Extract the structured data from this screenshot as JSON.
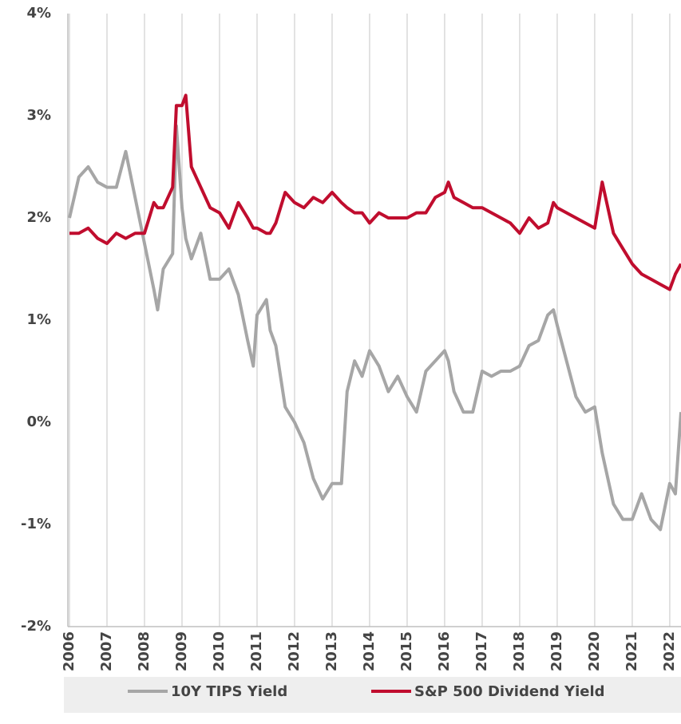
{
  "chart_data": {
    "type": "line",
    "x": [
      2006,
      2006.25,
      2006.5,
      2006.75,
      2007,
      2007.25,
      2007.5,
      2007.75,
      2008,
      2008.25,
      2008.35,
      2008.5,
      2008.75,
      2008.85,
      2009,
      2009.1,
      2009.25,
      2009.5,
      2009.75,
      2010,
      2010.25,
      2010.5,
      2010.75,
      2010.9,
      2011,
      2011.25,
      2011.35,
      2011.5,
      2011.75,
      2012,
      2012.25,
      2012.5,
      2012.75,
      2013,
      2013.25,
      2013.4,
      2013.6,
      2013.8,
      2014,
      2014.25,
      2014.5,
      2014.75,
      2015,
      2015.25,
      2015.5,
      2015.75,
      2016,
      2016.1,
      2016.25,
      2016.5,
      2016.75,
      2017,
      2017.25,
      2017.5,
      2017.75,
      2018,
      2018.25,
      2018.5,
      2018.75,
      2018.9,
      2019,
      2019.25,
      2019.5,
      2019.75,
      2020,
      2020.2,
      2020.5,
      2020.75,
      2021,
      2021.25,
      2021.5,
      2021.75,
      2022,
      2022.15,
      2022.3
    ],
    "series": [
      {
        "name": "10Y TIPS Yield",
        "color": "#a6a6a6",
        "values": [
          2.0,
          2.4,
          2.5,
          2.35,
          2.3,
          2.3,
          2.65,
          2.2,
          1.75,
          1.3,
          1.1,
          1.5,
          1.65,
          2.9,
          2.1,
          1.8,
          1.6,
          1.85,
          1.4,
          1.4,
          1.5,
          1.25,
          0.8,
          0.55,
          1.05,
          1.2,
          0.9,
          0.75,
          0.15,
          0.0,
          -0.2,
          -0.55,
          -0.75,
          -0.6,
          -0.6,
          0.3,
          0.6,
          0.45,
          0.7,
          0.55,
          0.3,
          0.45,
          0.25,
          0.1,
          0.5,
          0.6,
          0.7,
          0.6,
          0.3,
          0.1,
          0.1,
          0.5,
          0.45,
          0.5,
          0.5,
          0.55,
          0.75,
          0.8,
          1.05,
          1.1,
          0.95,
          0.6,
          0.25,
          0.1,
          0.15,
          -0.3,
          -0.8,
          -0.95,
          -0.95,
          -0.7,
          -0.95,
          -1.05,
          -0.6,
          -0.7,
          0.1
        ]
      },
      {
        "name": "S&P 500 Dividend Yield",
        "color": "#c00d2e",
        "values": [
          1.85,
          1.85,
          1.9,
          1.8,
          1.75,
          1.85,
          1.8,
          1.85,
          1.85,
          2.15,
          2.1,
          2.1,
          2.3,
          3.1,
          3.1,
          3.2,
          2.5,
          2.3,
          2.1,
          2.05,
          1.9,
          2.15,
          2.0,
          1.9,
          1.9,
          1.85,
          1.85,
          1.95,
          2.25,
          2.15,
          2.1,
          2.2,
          2.15,
          2.25,
          2.15,
          2.1,
          2.05,
          2.05,
          1.95,
          2.05,
          2.0,
          2.0,
          2.0,
          2.05,
          2.05,
          2.2,
          2.25,
          2.35,
          2.2,
          2.15,
          2.1,
          2.1,
          2.05,
          2.0,
          1.95,
          1.85,
          2.0,
          1.9,
          1.95,
          2.15,
          2.1,
          2.05,
          2.0,
          1.95,
          1.9,
          2.35,
          1.85,
          1.7,
          1.55,
          1.45,
          1.4,
          1.35,
          1.3,
          1.45,
          1.55
        ]
      }
    ],
    "xlim": [
      2006,
      2022.3
    ],
    "xticks": [
      2006,
      2007,
      2008,
      2009,
      2010,
      2011,
      2012,
      2013,
      2014,
      2015,
      2016,
      2017,
      2018,
      2019,
      2020,
      2021,
      2022
    ],
    "ylim": [
      -2,
      4
    ],
    "yticks": [
      {
        "value": -2,
        "label": "-2%"
      },
      {
        "value": -1,
        "label": "-1%"
      },
      {
        "value": 0,
        "label": "0%"
      },
      {
        "value": 1,
        "label": "1%"
      },
      {
        "value": 2,
        "label": "2%"
      },
      {
        "value": 3,
        "label": "3%"
      },
      {
        "value": 4,
        "label": "4%"
      }
    ],
    "grid": true
  }
}
